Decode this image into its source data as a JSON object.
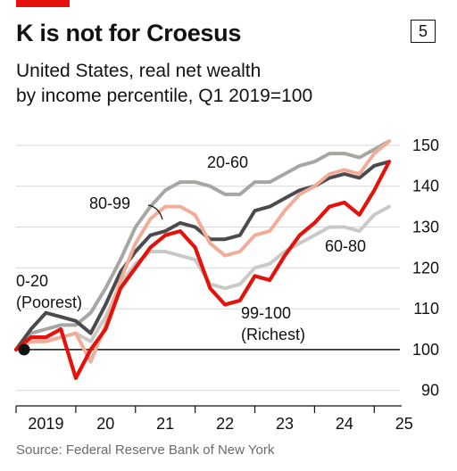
{
  "header": {
    "title": "K is not for Croesus",
    "badge": "5",
    "subtitle_line1": "United States, real net wealth",
    "subtitle_line2": "by income percentile, Q1 2019=100"
  },
  "footer": {
    "source": "Source: Federal Reserve Bank of New York"
  },
  "colors": {
    "accent": "#e3120b",
    "s0_20": "#4b4b4f",
    "s20_60": "#a7a6a2",
    "s60_80": "#c9c9c6",
    "s80_99": "#f1ad98",
    "s99_100": "#e3120b"
  },
  "chart_data": {
    "type": "line",
    "title": "K is not for Croesus",
    "subtitle": "United States, real net wealth by income percentile, Q1 2019=100",
    "x_unit": "quarter",
    "x_range": [
      2019.0,
      2025.25
    ],
    "x_ticks": [
      {
        "value": 2019,
        "label": "2019"
      },
      {
        "value": 2020,
        "label": "20"
      },
      {
        "value": 2021,
        "label": "21"
      },
      {
        "value": 2022,
        "label": "22"
      },
      {
        "value": 2023,
        "label": "23"
      },
      {
        "value": 2024,
        "label": "24"
      },
      {
        "value": 2025,
        "label": "25"
      }
    ],
    "ylim": [
      86,
      155
    ],
    "y_ticks": [
      90,
      100,
      110,
      120,
      130,
      140,
      150
    ],
    "baseline": 100,
    "grid": "horizontal",
    "x": [
      2019.0,
      2019.25,
      2019.5,
      2019.75,
      2020.0,
      2020.25,
      2020.5,
      2020.75,
      2021.0,
      2021.25,
      2021.5,
      2021.75,
      2022.0,
      2022.25,
      2022.5,
      2022.75,
      2023.0,
      2023.25,
      2023.5,
      2023.75,
      2024.0,
      2024.25,
      2024.5,
      2024.75,
      2025.0,
      2025.25
    ],
    "series": [
      {
        "name": "0-20",
        "color_key": "s0_20",
        "label_lines": [
          "0-20",
          "(Poorest)"
        ],
        "values": [
          100,
          105,
          109,
          108,
          107,
          104,
          111,
          119,
          124,
          128,
          129,
          131,
          130,
          127,
          127,
          128,
          134,
          135,
          137,
          139,
          140,
          142,
          143,
          142,
          145,
          146
        ]
      },
      {
        "name": "20-60",
        "color_key": "s20_60",
        "label_lines": [
          "20-60"
        ],
        "values": [
          100,
          104,
          105,
          106,
          106,
          109,
          115,
          122,
          130,
          135,
          139,
          141,
          141,
          140,
          138,
          138,
          141,
          141,
          143,
          145,
          146,
          148,
          148,
          147,
          149,
          151
        ]
      },
      {
        "name": "60-80",
        "color_key": "s60_80",
        "label_lines": [
          "60-80"
        ],
        "values": [
          100,
          102,
          102,
          103,
          104,
          102,
          108,
          116,
          121,
          124,
          124,
          123,
          122,
          116,
          115,
          116,
          120,
          121,
          124,
          126,
          128,
          130,
          130,
          129,
          133,
          135
        ]
      },
      {
        "name": "80-99",
        "color_key": "s80_99",
        "label_lines": [
          "80-99"
        ],
        "values": [
          100,
          102,
          102,
          103,
          104,
          97,
          106,
          117,
          126,
          132,
          135,
          135,
          133,
          126,
          123,
          124,
          128,
          129,
          134,
          138,
          140,
          143,
          144,
          143,
          148,
          151
        ]
      },
      {
        "name": "99-100",
        "color_key": "s99_100",
        "label_lines": [
          "99-100",
          "(Richest)"
        ],
        "values": [
          100,
          103,
          103,
          105,
          93,
          100,
          105,
          115,
          120,
          125,
          128,
          129,
          125,
          115,
          111,
          112,
          118,
          117,
          123,
          128,
          131,
          135,
          136,
          133,
          139,
          146
        ]
      }
    ]
  }
}
